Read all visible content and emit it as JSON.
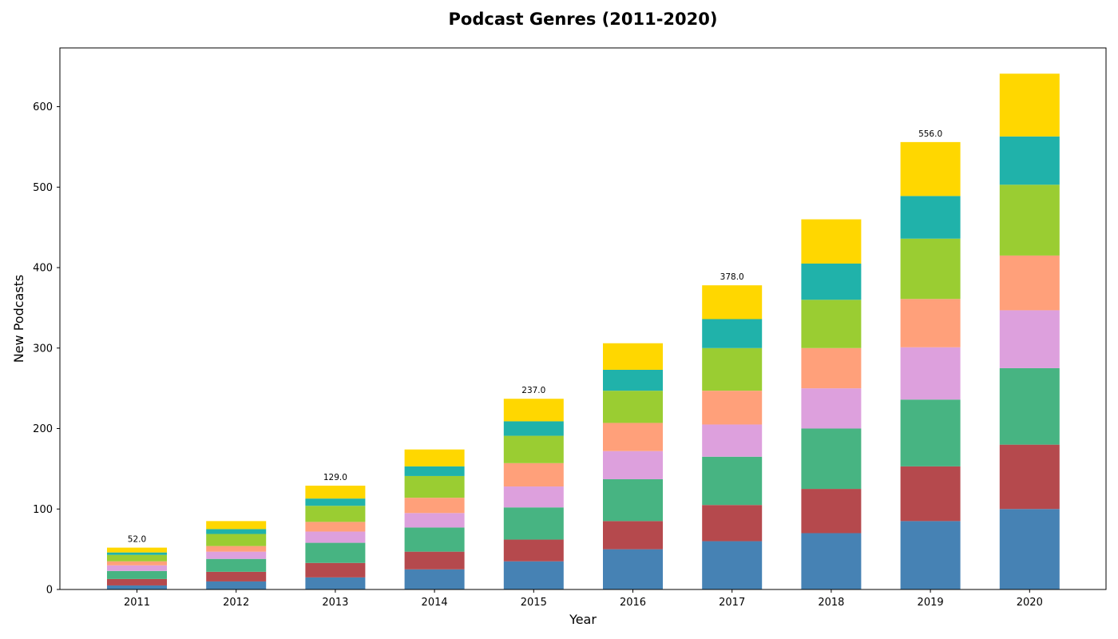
{
  "chart_data": {
    "type": "bar",
    "stacked": true,
    "title": "Podcast Genres (2011-2020)",
    "xlabel": "Year",
    "ylabel": "New Podcasts",
    "categories": [
      "2011",
      "2012",
      "2013",
      "2014",
      "2015",
      "2016",
      "2017",
      "2018",
      "2019",
      "2020"
    ],
    "ylim": [
      0,
      673
    ],
    "yticks": [
      0,
      100,
      200,
      300,
      400,
      500,
      600
    ],
    "grid": false,
    "legend": "none",
    "series": [
      {
        "color": "#4682B4",
        "values": [
          5,
          10,
          15,
          25,
          35,
          50,
          60,
          70,
          85,
          100
        ]
      },
      {
        "color": "#B5494D",
        "values": [
          8,
          12,
          18,
          22,
          27,
          35,
          45,
          55,
          68,
          80
        ]
      },
      {
        "color": "#47B482",
        "values": [
          10,
          16,
          25,
          30,
          40,
          52,
          60,
          75,
          83,
          95
        ]
      },
      {
        "color": "#DDA0DD",
        "values": [
          7,
          9,
          14,
          18,
          26,
          35,
          40,
          50,
          65,
          72
        ]
      },
      {
        "color": "#FFA07A",
        "values": [
          5,
          7,
          12,
          19,
          29,
          35,
          42,
          50,
          60,
          68
        ]
      },
      {
        "color": "#9ACD32",
        "values": [
          8,
          15,
          20,
          27,
          34,
          40,
          53,
          60,
          75,
          88
        ]
      },
      {
        "color": "#20B2AA",
        "values": [
          3,
          6,
          9,
          12,
          18,
          26,
          36,
          45,
          53,
          60
        ]
      },
      {
        "color": "#FFD700",
        "values": [
          6,
          10,
          16,
          21,
          28,
          33,
          42,
          55,
          67,
          78
        ]
      }
    ],
    "total_labels": [
      {
        "category": "2011",
        "text": "52.0"
      },
      {
        "category": "2013",
        "text": "129.0"
      },
      {
        "category": "2015",
        "text": "237.0"
      },
      {
        "category": "2017",
        "text": "378.0"
      },
      {
        "category": "2019",
        "text": "556.0"
      }
    ]
  }
}
